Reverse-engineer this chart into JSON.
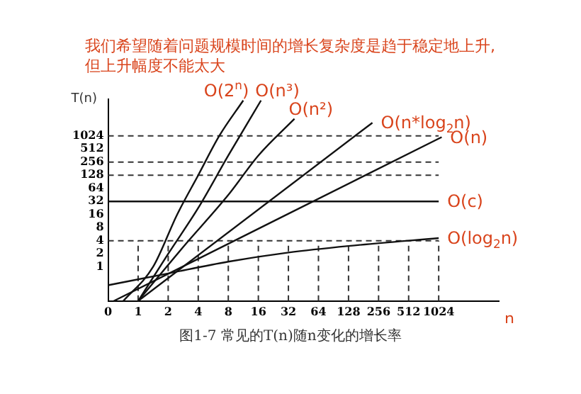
{
  "chart_data": {
    "type": "line",
    "title": "我们希望随着问题规模时间的增长复杂度是趋于稳定地上升,但上升幅度不能太大",
    "xlabel": "n",
    "ylabel": "T(n)",
    "annotations": [
      "图1-7 常见的T(n)随n变化的增长率"
    ],
    "marker": "none",
    "legend": false,
    "grid": false,
    "log": "xy",
    "xlim": [
      0.5,
      4096
    ],
    "ylim": [
      0.165,
      7100
    ],
    "xticks": [
      {
        "value": 0.5,
        "label": "0"
      },
      1,
      2,
      4,
      8,
      16,
      32,
      64,
      128,
      256,
      512,
      1024
    ],
    "yticks": [
      1,
      2,
      4,
      8,
      16,
      32,
      64,
      128,
      256,
      512,
      1024
    ],
    "ref_lines": [
      {
        "axis": "y",
        "value": 1024,
        "color": "#333333",
        "line_style": "dashed"
      },
      {
        "axis": "y",
        "value": 256,
        "color": "#333333",
        "line_style": "dashed"
      },
      {
        "axis": "y",
        "value": 128,
        "color": "#333333",
        "line_style": "dashed"
      },
      {
        "axis": "y",
        "value": 4,
        "color": "#333333",
        "line_style": "dashed"
      },
      {
        "axis": "x",
        "value": 1,
        "color": "#333333",
        "line_style": "dashed"
      },
      {
        "axis": "x",
        "value": 2,
        "color": "#333333",
        "line_style": "dashed"
      },
      {
        "axis": "x",
        "value": 4,
        "color": "#333333",
        "line_style": "dashed"
      },
      {
        "axis": "x",
        "value": 8,
        "color": "#333333",
        "line_style": "dashed"
      },
      {
        "axis": "x",
        "value": 16,
        "color": "#333333",
        "line_style": "dashed"
      },
      {
        "axis": "x",
        "value": 32,
        "color": "#333333",
        "line_style": "dashed"
      },
      {
        "axis": "x",
        "value": 64,
        "color": "#333333",
        "line_style": "dashed"
      },
      {
        "axis": "x",
        "value": 128,
        "color": "#333333",
        "line_style": "dashed"
      },
      {
        "axis": "x",
        "value": 256,
        "color": "#333333",
        "line_style": "dashed"
      },
      {
        "axis": "x",
        "value": 512,
        "color": "#333333",
        "line_style": "dashed"
      },
      {
        "axis": "x",
        "value": 1024,
        "color": "#333333",
        "line_style": "dashed"
      }
    ],
    "series": [
      {
        "name": "O(2$^{n}$)",
        "color": "#111111",
        "x": [
          0.71,
          1.41,
          2.46,
          4,
          6.5,
          11.3
        ],
        "values": [
          0.165,
          1,
          16,
          128,
          1024,
          6650
        ]
      },
      {
        "name": "O(n³)",
        "color": "#111111",
        "x": [
          1,
          2,
          4,
          8,
          17
        ],
        "values": [
          0.165,
          2,
          22.6,
          362,
          6650
        ]
      },
      {
        "name": "O(n²)",
        "color": "#111111",
        "x": [
          1,
          2.8,
          8,
          16,
          36.8
        ],
        "values": [
          0.165,
          2.8,
          45,
          362,
          2520
        ]
      },
      {
        "name": "O(n*log$_{2}$n)",
        "color": "#111111",
        "x": [
          1,
          222
        ],
        "values": [
          0.165,
          2048
        ]
      },
      {
        "name": "O(n)",
        "color": "#111111",
        "x": [
          0.57,
          1097
        ],
        "values": [
          0.165,
          955
        ]
      },
      {
        "name": "O(c)",
        "color": "#111111",
        "x": [
          0.5,
          1024
        ],
        "values": [
          32,
          32
        ]
      },
      {
        "name": "O(log$_{2}$n)",
        "color": "#111111",
        "x": [
          0.5,
          2,
          8,
          32,
          128,
          1024
        ],
        "values": [
          0.38,
          0.71,
          1.32,
          2.14,
          3.03,
          4.6
        ]
      }
    ]
  }
}
